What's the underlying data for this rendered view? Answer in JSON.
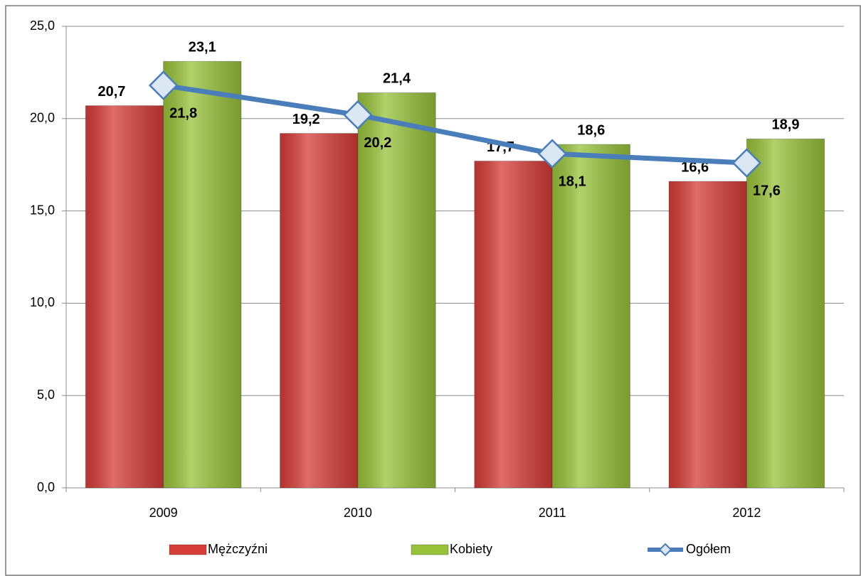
{
  "chart_data": {
    "type": "bar",
    "categories": [
      "2009",
      "2010",
      "2011",
      "2012"
    ],
    "series": [
      {
        "name": "Mężczyźni",
        "type": "bar",
        "color": "#d63c38",
        "label_color": "#ff0000",
        "values": [
          20.7,
          19.2,
          17.7,
          16.6
        ],
        "value_labels": [
          "20,7",
          "19,2",
          "17,7",
          "16,6"
        ]
      },
      {
        "name": "Kobiety",
        "type": "bar",
        "color": "#98c23a",
        "label_color": "#00b050",
        "values": [
          23.1,
          21.4,
          18.6,
          18.9
        ],
        "value_labels": [
          "23,1",
          "21,4",
          "18,6",
          "18,9"
        ]
      },
      {
        "name": "Ogółem",
        "type": "line",
        "color": "#4a7ebb",
        "label_color": "#000000",
        "values": [
          21.8,
          20.2,
          18.1,
          17.6
        ],
        "value_labels": [
          "21,8",
          "20,2",
          "18,1",
          "17,6"
        ]
      }
    ],
    "ylim": [
      0,
      25
    ],
    "yticks": [
      {
        "value": 0,
        "label": "0,0"
      },
      {
        "value": 5,
        "label": "5,0"
      },
      {
        "value": 10,
        "label": "10,0"
      },
      {
        "value": 15,
        "label": "15,0"
      },
      {
        "value": 20,
        "label": "20,0"
      },
      {
        "value": 25,
        "label": "25,0"
      }
    ],
    "grid": true,
    "legend": "bottom"
  }
}
